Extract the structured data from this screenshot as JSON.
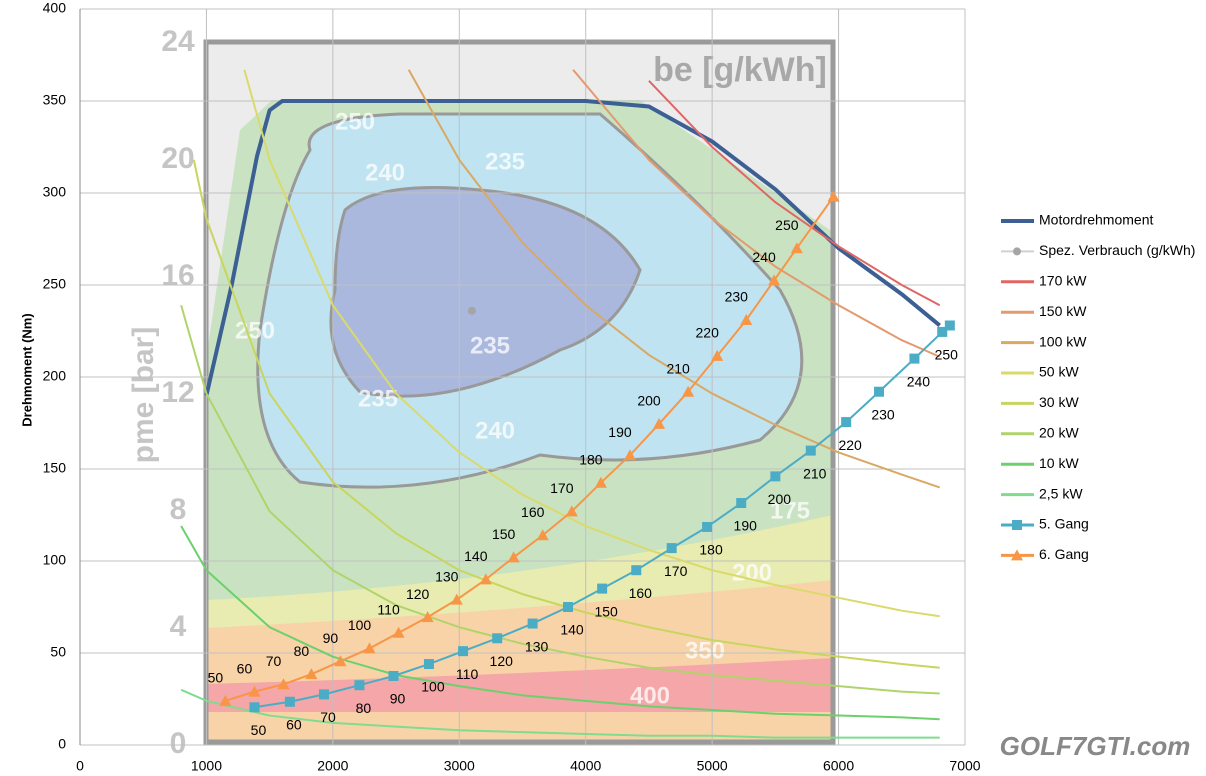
{
  "chart_data": {
    "type": "line",
    "y_label": "Drehmoment (Nm)",
    "xlim": [
      0,
      7000
    ],
    "xticks": [
      0,
      1000,
      2000,
      3000,
      4000,
      5000,
      6000,
      7000
    ],
    "ylim": [
      0,
      400
    ],
    "yticks": [
      0,
      50,
      100,
      150,
      200,
      250,
      300,
      350,
      400
    ],
    "grid": true,
    "legend": "right",
    "series": [
      {
        "name": "Motordrehmoment",
        "color": "#3c5f94",
        "width": 4,
        "x": [
          1000,
          1200,
          1400,
          1500,
          1600,
          4000,
          4500,
          5000,
          5500,
          6000,
          6500,
          6800
        ],
        "values": [
          190,
          250,
          320,
          345,
          350,
          350,
          347,
          328,
          302,
          270,
          245,
          228
        ]
      },
      {
        "name": "Spez. Verbrauch (g/kWh)",
        "color": "#a5a5a5",
        "width": 0,
        "marker": "circle",
        "x": [
          3100
        ],
        "values": [
          236
        ]
      },
      {
        "name": "170 kW",
        "color": "#e06666",
        "width": 2,
        "x": [
          4500,
          5000,
          5500,
          6000,
          6500,
          6800
        ],
        "values": [
          361,
          325,
          295,
          271,
          250,
          239
        ]
      },
      {
        "name": "150 kW",
        "color": "#e39a6e",
        "width": 2,
        "x": [
          3900,
          4500,
          5000,
          5500,
          6000,
          6500,
          6800
        ],
        "values": [
          367,
          318,
          286,
          260,
          239,
          220,
          211
        ]
      },
      {
        "name": "100 kW",
        "color": "#d9a865",
        "width": 2,
        "x": [
          2600,
          3000,
          3500,
          4000,
          4500,
          5000,
          5500,
          6000,
          6500,
          6800
        ],
        "values": [
          367,
          318,
          273,
          239,
          212,
          191,
          174,
          159,
          147,
          140
        ]
      },
      {
        "name": "50 kW",
        "color": "#dada6a",
        "width": 2,
        "x": [
          1300,
          1500,
          2000,
          2500,
          3000,
          3500,
          4000,
          4500,
          5000,
          5500,
          6000,
          6500,
          6800
        ],
        "values": [
          367,
          318,
          239,
          191,
          159,
          136,
          119,
          106,
          95,
          87,
          80,
          73,
          70
        ]
      },
      {
        "name": "30 kW",
        "color": "#c8d55e",
        "width": 2,
        "x": [
          900,
          1000,
          1500,
          2000,
          2500,
          3000,
          3500,
          4000,
          4500,
          5000,
          5500,
          6000,
          6500,
          6800
        ],
        "values": [
          318,
          286,
          191,
          143,
          115,
          95,
          82,
          72,
          64,
          57,
          52,
          48,
          44,
          42
        ]
      },
      {
        "name": "20 kW",
        "color": "#b0d46b",
        "width": 2,
        "x": [
          800,
          1000,
          1500,
          2000,
          2500,
          3000,
          3500,
          4000,
          4500,
          5000,
          5500,
          6000,
          6500,
          6800
        ],
        "values": [
          239,
          191,
          127,
          95,
          76,
          64,
          55,
          48,
          42,
          38,
          35,
          32,
          29,
          28
        ]
      },
      {
        "name": "10 kW",
        "color": "#6cd06c",
        "width": 2,
        "x": [
          800,
          1000,
          1500,
          2000,
          2500,
          3000,
          3500,
          4000,
          4500,
          5000,
          5500,
          6000,
          6500,
          6800
        ],
        "values": [
          119,
          95,
          64,
          48,
          38,
          32,
          27,
          24,
          21,
          19,
          17,
          16,
          15,
          14
        ]
      },
      {
        "name": "2,5 kW",
        "color": "#7fdc8f",
        "width": 2,
        "x": [
          800,
          1000,
          1500,
          2000,
          2500,
          3000,
          3500,
          4000,
          4500,
          5000,
          5500,
          6000,
          6500,
          6800
        ],
        "values": [
          30,
          24,
          16,
          12,
          10,
          8,
          7,
          6,
          5,
          5,
          4,
          4,
          4,
          4
        ]
      },
      {
        "name": "5. Gang",
        "color": "#4bacc6",
        "width": 2,
        "marker": "square",
        "label_pos": "below",
        "x": [
          1380,
          1660,
          1930,
          2210,
          2480,
          2760,
          3030,
          3300,
          3580,
          3860,
          4130,
          4400,
          4680,
          4960,
          5230,
          5500,
          5780,
          6060,
          6320,
          6600,
          6820,
          6880
        ],
        "values": [
          20.5,
          23.5,
          27.5,
          32.5,
          37.5,
          44,
          51,
          58,
          66,
          75,
          85,
          95,
          107,
          118.5,
          131.5,
          146,
          160,
          175.5,
          192,
          210,
          224.5,
          228
        ],
        "point_labels": [
          50,
          60,
          70,
          80,
          90,
          100,
          110,
          120,
          130,
          140,
          150,
          160,
          170,
          180,
          190,
          200,
          210,
          220,
          230,
          240,
          250,
          null
        ]
      },
      {
        "name": "6. Gang",
        "color": "#f79646",
        "width": 2,
        "marker": "triangle",
        "label_pos": "above",
        "x": [
          1150,
          1380,
          1610,
          1830,
          2060,
          2290,
          2520,
          2750,
          2980,
          3210,
          3430,
          3660,
          3890,
          4120,
          4350,
          4580,
          4810,
          5040,
          5270,
          5490,
          5670,
          5960
        ],
        "values": [
          24,
          29,
          33,
          38.5,
          45.5,
          52.5,
          61,
          69.5,
          79,
          90,
          102,
          114,
          127,
          142.5,
          157.5,
          174.5,
          192,
          211.5,
          231,
          252.5,
          270,
          298
        ],
        "point_labels": [
          50,
          60,
          70,
          80,
          90,
          100,
          110,
          120,
          130,
          140,
          150,
          160,
          170,
          180,
          190,
          200,
          210,
          220,
          230,
          240,
          250,
          null
        ]
      }
    ]
  },
  "background_map": {
    "title": "be [g/kWh]",
    "axis_label": "pme [bar]",
    "pme_ticks": [
      0,
      4,
      8,
      12,
      16,
      20,
      24
    ],
    "contour_labels": [
      "250",
      "240",
      "235",
      "250",
      "235",
      "235",
      "240",
      "175",
      "200",
      "350",
      "400"
    ]
  },
  "watermark": "GOLF7GTI.com"
}
